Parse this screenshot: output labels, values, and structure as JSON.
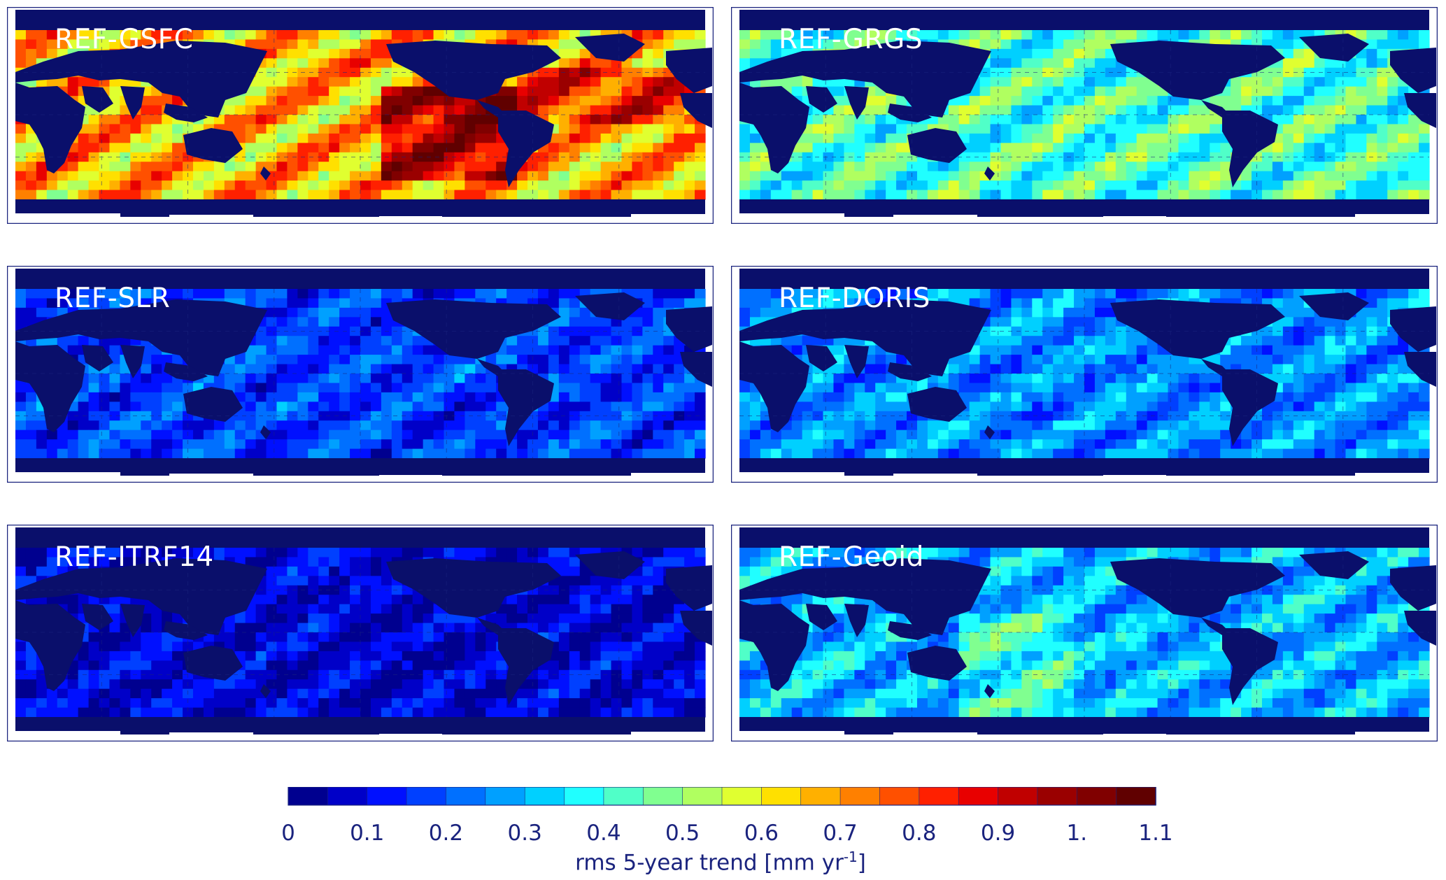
{
  "panels": [
    {
      "label": "REF-GSFC",
      "level": 0.62
    },
    {
      "label": "REF-GRGS",
      "level": 0.38
    },
    {
      "label": "REF-SLR",
      "level": 0.14
    },
    {
      "label": "REF-DORIS",
      "level": 0.22
    },
    {
      "label": "REF-ITRF14",
      "level": 0.06
    },
    {
      "label": "REF-Geoid",
      "level": 0.26
    }
  ],
  "colorbar": {
    "tick_labels": [
      "0",
      "0.1",
      "0.2",
      "0.3",
      "0.4",
      "0.5",
      "0.6",
      "0.7",
      "0.8",
      "0.9",
      "1.",
      "1.1"
    ],
    "min": 0,
    "max": 1.1,
    "bins": 22,
    "title_prefix": "rms  5-year  trend [mm  yr",
    "title_exp": "-1",
    "title_suffix": "]"
  },
  "colors": {
    "land": "#0a0f6b",
    "ice": "#ffffff",
    "frame": "#1a237e",
    "palette": [
      "#00008f",
      "#0000c8",
      "#0010ff",
      "#0040ff",
      "#0070ff",
      "#00a0ff",
      "#00d0ff",
      "#20ffff",
      "#50ffc8",
      "#80ff90",
      "#b0ff60",
      "#e0ff30",
      "#ffe000",
      "#ffb000",
      "#ff8000",
      "#ff5000",
      "#ff2000",
      "#e80000",
      "#c00000",
      "#9a0000",
      "#800000",
      "#600000"
    ]
  }
}
